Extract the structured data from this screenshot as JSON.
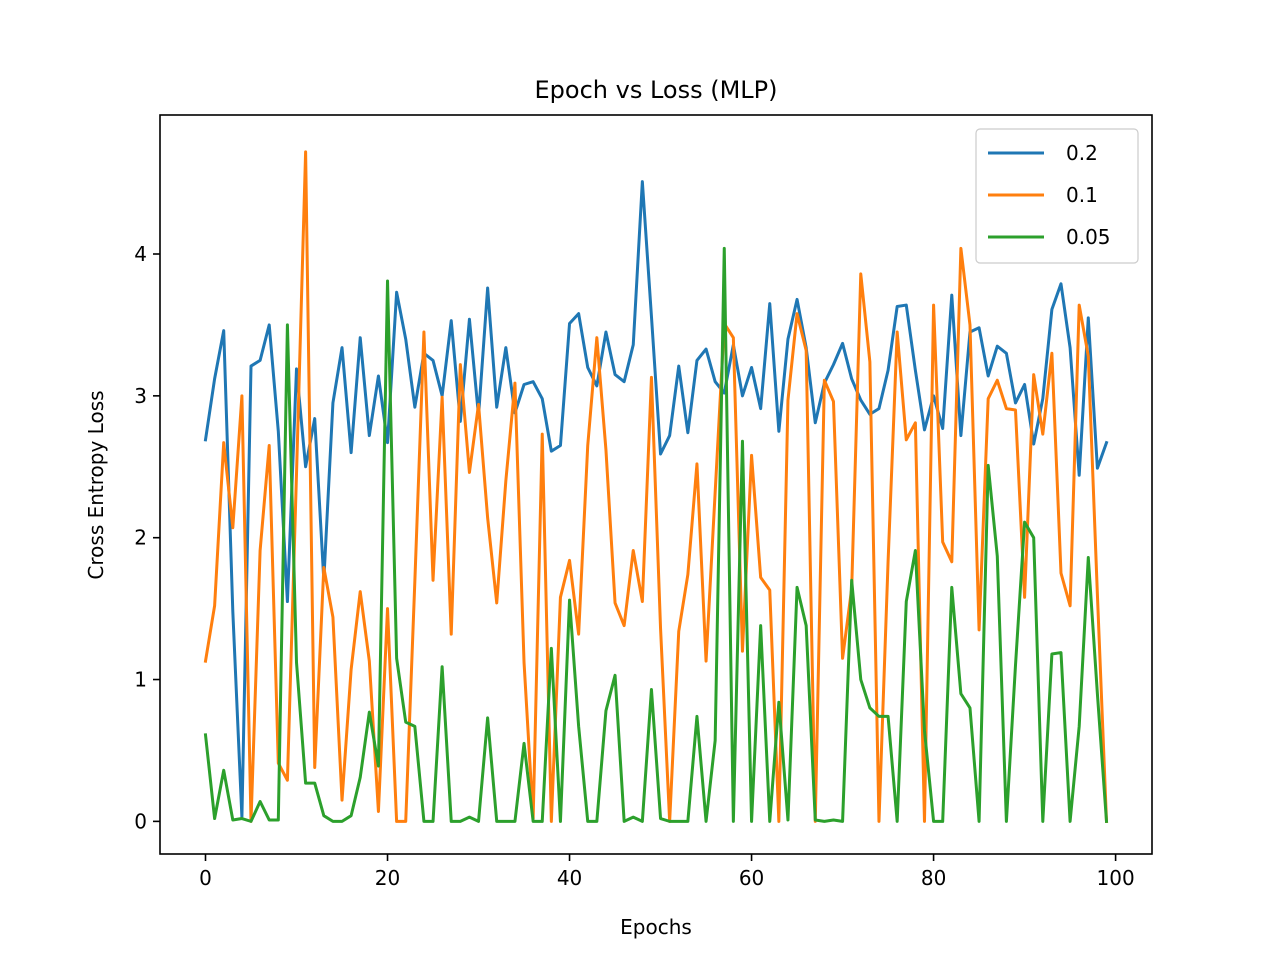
{
  "chart_data": {
    "type": "line",
    "title": "Epoch vs Loss (MLP)",
    "xlabel": "Epochs",
    "ylabel": "Cross Entropy Loss",
    "xlim": [
      -5,
      104
    ],
    "ylim": [
      -0.23,
      4.98
    ],
    "xticks": [
      0,
      20,
      40,
      60,
      80,
      100
    ],
    "yticks": [
      0,
      1,
      2,
      3,
      4
    ],
    "grid": false,
    "legend_position": "top-right",
    "series": [
      {
        "name": "0.2",
        "color": "#1f77b4",
        "x": [
          0,
          1,
          2,
          3,
          4,
          5,
          6,
          7,
          8,
          9,
          10,
          11,
          12,
          13,
          14,
          15,
          16,
          17,
          18,
          19,
          20,
          21,
          22,
          23,
          24,
          25,
          26,
          27,
          28,
          29,
          30,
          31,
          32,
          33,
          34,
          35,
          36,
          37,
          38,
          39,
          40,
          41,
          42,
          43,
          44,
          45,
          46,
          47,
          48,
          49,
          50,
          51,
          52,
          53,
          54,
          55,
          56,
          57,
          58,
          59,
          60,
          61,
          62,
          63,
          64,
          65,
          66,
          67,
          68,
          69,
          70,
          71,
          72,
          73,
          74,
          75,
          76,
          77,
          78,
          79,
          80,
          81,
          82,
          83,
          84,
          85,
          86,
          87,
          88,
          89,
          90,
          91,
          92,
          93,
          94,
          95,
          96,
          97,
          98,
          99
        ],
        "values": [
          2.69,
          3.12,
          3.46,
          1.48,
          0.03,
          3.21,
          3.25,
          3.5,
          2.75,
          1.55,
          3.19,
          2.5,
          2.84,
          1.7,
          2.95,
          3.34,
          2.6,
          3.41,
          2.72,
          3.14,
          2.67,
          3.73,
          3.4,
          2.92,
          3.3,
          3.25,
          3.0,
          3.53,
          2.82,
          3.54,
          2.86,
          3.76,
          2.92,
          3.34,
          2.88,
          3.08,
          3.1,
          2.98,
          2.61,
          2.65,
          3.51,
          3.58,
          3.2,
          3.07,
          3.45,
          3.15,
          3.1,
          3.36,
          4.51,
          3.56,
          2.59,
          2.72,
          3.21,
          2.74,
          3.25,
          3.33,
          3.1,
          3.02,
          3.36,
          3.0,
          3.2,
          2.91,
          3.65,
          2.75,
          3.4,
          3.68,
          3.34,
          2.81,
          3.09,
          3.22,
          3.37,
          3.12,
          2.97,
          2.87,
          2.91,
          3.18,
          3.63,
          3.64,
          3.18,
          2.76,
          3.0,
          2.77,
          3.71,
          2.72,
          3.45,
          3.48,
          3.14,
          3.35,
          3.3,
          2.95,
          3.08,
          2.66,
          2.98,
          3.61,
          3.79,
          3.34,
          2.44,
          3.55,
          2.49,
          2.67
        ]
      },
      {
        "name": "0.1",
        "color": "#ff7f0e",
        "x": [
          0,
          1,
          2,
          3,
          4,
          5,
          6,
          7,
          8,
          9,
          10,
          11,
          12,
          13,
          14,
          15,
          16,
          17,
          18,
          19,
          20,
          21,
          22,
          23,
          24,
          25,
          26,
          27,
          28,
          29,
          30,
          31,
          32,
          33,
          34,
          35,
          36,
          37,
          38,
          39,
          40,
          41,
          42,
          43,
          44,
          45,
          46,
          47,
          48,
          49,
          50,
          51,
          52,
          53,
          54,
          55,
          56,
          57,
          58,
          59,
          60,
          61,
          62,
          63,
          64,
          65,
          66,
          67,
          68,
          69,
          70,
          71,
          72,
          73,
          74,
          75,
          76,
          77,
          78,
          79,
          80,
          81,
          82,
          83,
          84,
          85,
          86,
          87,
          88,
          89,
          90,
          91,
          92,
          93,
          94,
          95,
          96,
          97,
          98,
          99
        ],
        "values": [
          1.13,
          1.52,
          2.67,
          2.07,
          3.0,
          0.0,
          1.91,
          2.65,
          0.41,
          0.29,
          2.45,
          4.72,
          0.38,
          1.79,
          1.44,
          0.15,
          1.07,
          1.62,
          1.13,
          0.07,
          1.5,
          0.0,
          0.0,
          1.69,
          3.45,
          1.7,
          2.99,
          1.32,
          3.22,
          2.46,
          2.94,
          2.14,
          1.54,
          2.4,
          3.09,
          1.12,
          0.02,
          2.73,
          0.0,
          1.58,
          1.84,
          1.32,
          2.65,
          3.41,
          2.62,
          1.54,
          1.38,
          1.91,
          1.55,
          3.13,
          1.36,
          0.0,
          1.34,
          1.74,
          2.52,
          1.13,
          2.32,
          3.51,
          3.41,
          1.2,
          2.58,
          1.72,
          1.63,
          0.0,
          2.97,
          3.58,
          3.32,
          0.0,
          3.11,
          2.96,
          1.15,
          1.64,
          3.86,
          3.24,
          0.0,
          1.83,
          3.45,
          2.69,
          2.81,
          0.0,
          3.64,
          1.97,
          1.83,
          4.04,
          3.5,
          1.35,
          2.98,
          3.11,
          2.91,
          2.9,
          1.58,
          3.15,
          2.73,
          3.3,
          1.75,
          1.52,
          3.64,
          3.28,
          1.6,
          0.0
        ]
      },
      {
        "name": "0.05",
        "color": "#2ca02c",
        "x": [
          0,
          1,
          2,
          3,
          4,
          5,
          6,
          7,
          8,
          9,
          10,
          11,
          12,
          13,
          14,
          15,
          16,
          17,
          18,
          19,
          20,
          21,
          22,
          23,
          24,
          25,
          26,
          27,
          28,
          29,
          30,
          31,
          32,
          33,
          34,
          35,
          36,
          37,
          38,
          39,
          40,
          41,
          42,
          43,
          44,
          45,
          46,
          47,
          48,
          49,
          50,
          51,
          52,
          53,
          54,
          55,
          56,
          57,
          58,
          59,
          60,
          61,
          62,
          63,
          64,
          65,
          66,
          67,
          68,
          69,
          70,
          71,
          72,
          73,
          74,
          75,
          76,
          77,
          78,
          79,
          80,
          81,
          82,
          83,
          84,
          85,
          86,
          87,
          88,
          89,
          90,
          91,
          92,
          93,
          94,
          95,
          96,
          97,
          98,
          99
        ],
        "values": [
          0.61,
          0.02,
          0.36,
          0.01,
          0.02,
          0.0,
          0.14,
          0.01,
          0.01,
          3.5,
          1.12,
          0.27,
          0.27,
          0.04,
          0.0,
          0.0,
          0.04,
          0.31,
          0.77,
          0.39,
          3.81,
          1.15,
          0.7,
          0.67,
          0.0,
          0.0,
          1.09,
          0.0,
          0.0,
          0.03,
          0.0,
          0.73,
          0.0,
          0.0,
          0.0,
          0.55,
          0.0,
          0.0,
          1.22,
          0.0,
          1.56,
          0.67,
          0.0,
          0.0,
          0.78,
          1.03,
          0.0,
          0.03,
          0.0,
          0.93,
          0.02,
          0.0,
          0.0,
          0.0,
          0.74,
          0.0,
          0.57,
          4.04,
          0.0,
          2.68,
          0.0,
          1.38,
          0.0,
          0.84,
          0.01,
          1.65,
          1.38,
          0.01,
          0.0,
          0.01,
          0.0,
          1.7,
          1.0,
          0.8,
          0.74,
          0.74,
          0.0,
          1.55,
          1.91,
          0.64,
          0.0,
          0.0,
          1.65,
          0.9,
          0.8,
          0.0,
          2.51,
          1.87,
          0.0,
          1.1,
          2.11,
          2.0,
          0.0,
          1.18,
          1.19,
          0.0,
          0.67,
          1.86,
          0.9,
          0.0
        ]
      }
    ]
  }
}
